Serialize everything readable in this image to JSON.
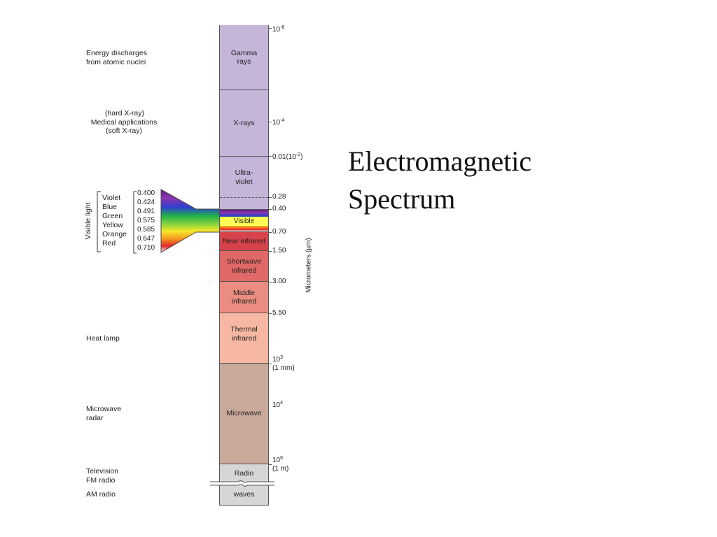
{
  "title": {
    "line1": "Electromagnetic",
    "line2": "Spectrum"
  },
  "axis_label": "Micrometers (µm)",
  "visible_light_label": "Visible light",
  "applications": [
    {
      "line1": "Energy discharges",
      "line2": "from atomic nuclei"
    },
    {
      "line1": "(hard X-ray)",
      "line2": "Medical applications",
      "line3": "(soft X-ray)"
    },
    {
      "line1": "Heat lamp"
    },
    {
      "line1": "Microwave",
      "line2": "radar"
    },
    {
      "line1": "Television",
      "line2": "FM radio"
    },
    {
      "line1": "AM radio"
    }
  ],
  "bands": [
    {
      "line1": "Gamma",
      "line2": "rays",
      "color": "#c4b5d9"
    },
    {
      "line1": "X-rays",
      "color": "#c4b5d9"
    },
    {
      "line1": "Ultra-",
      "line2": "violet",
      "color": "#c4b5d9"
    },
    {
      "line1": "Visible",
      "color": "#ffffff"
    },
    {
      "line1": "Near infrared",
      "color": "#d8424a"
    },
    {
      "line1": "Shortwave",
      "line2": "infrared",
      "color": "#e06866"
    },
    {
      "line1": "Middle",
      "line2": "infrared",
      "color": "#ea8d80"
    },
    {
      "line1": "Thermal",
      "line2": "infrared",
      "color": "#f6b8a2"
    },
    {
      "line1": "Microwave",
      "color": "#c9a99a"
    },
    {
      "line1": "Radio",
      "color": "#d6d6d6"
    },
    {
      "line1": "waves",
      "color": "#d6d6d6"
    }
  ],
  "scale": [
    {
      "base": "10",
      "exp": "-6"
    },
    {
      "base": "10",
      "exp": "-4"
    },
    {
      "base": "0.01(10",
      "exp": "-2",
      "suffix": ")"
    },
    {
      "base": "0.28"
    },
    {
      "base": "0.40"
    },
    {
      "base": "0.70"
    },
    {
      "base": "1.50"
    },
    {
      "base": "3.00"
    },
    {
      "base": "5.50"
    },
    {
      "base": "10",
      "exp": "3",
      "line2": "(1 mm)"
    },
    {
      "base": "10",
      "exp": "4"
    },
    {
      "base": "10",
      "exp": "6",
      "line2": "(1 m)"
    }
  ],
  "visible_colors": [
    {
      "name": "Violet",
      "wavelength": "0.400",
      "color": "#7a2a9c"
    },
    {
      "name": "Blue",
      "wavelength": "0.424",
      "color": "#2f3fd0"
    },
    {
      "name": "Green",
      "wavelength": "0.491",
      "color": "#1fb24a"
    },
    {
      "name": "Yellow",
      "wavelength": "0.575",
      "color": "#f4e82a"
    },
    {
      "name": "Orange",
      "wavelength": "0.585",
      "color": "#f59a1f"
    },
    {
      "name": "Red",
      "wavelength": "0.647",
      "color": "#e3262a"
    },
    {
      "name": "",
      "wavelength": "0.710",
      "color": "#ffffff"
    }
  ]
}
